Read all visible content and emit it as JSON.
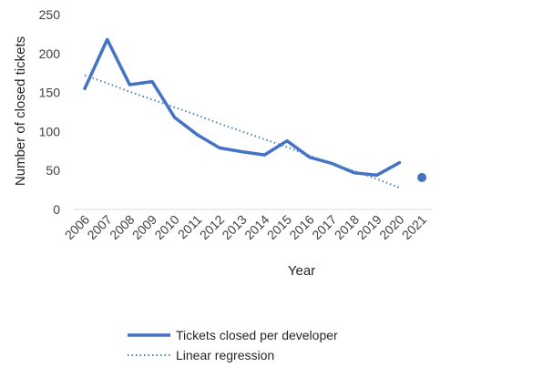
{
  "chart_data": {
    "type": "line",
    "x": [
      "2006",
      "2007",
      "2008",
      "2009",
      "2010",
      "2011",
      "2012",
      "2013",
      "2014",
      "2015",
      "2016",
      "2017",
      "2018",
      "2019",
      "2020",
      "2021"
    ],
    "series": [
      {
        "name": "Tickets closed per developer",
        "values": [
          155,
          218,
          160,
          164,
          118,
          96,
          79,
          74,
          70,
          88,
          67,
          59,
          47,
          44,
          60,
          null
        ],
        "color": "#4472c4",
        "style": "solid"
      },
      {
        "name": "Linear regression",
        "values": [
          172,
          162,
          151,
          141,
          131,
          121,
          110,
          100,
          90,
          80,
          69,
          59,
          49,
          39,
          28,
          null
        ],
        "color": "#4f81bd",
        "style": "dotted"
      }
    ],
    "extra_points": [
      {
        "x": "2021",
        "value": 41,
        "color": "#4472c4"
      }
    ],
    "xlabel": "Year",
    "ylabel": "Number of closed tickets",
    "ylim": [
      0,
      250
    ],
    "yticks": [
      0,
      50,
      100,
      150,
      200,
      250
    ],
    "grid": false,
    "legend": "bottom"
  }
}
